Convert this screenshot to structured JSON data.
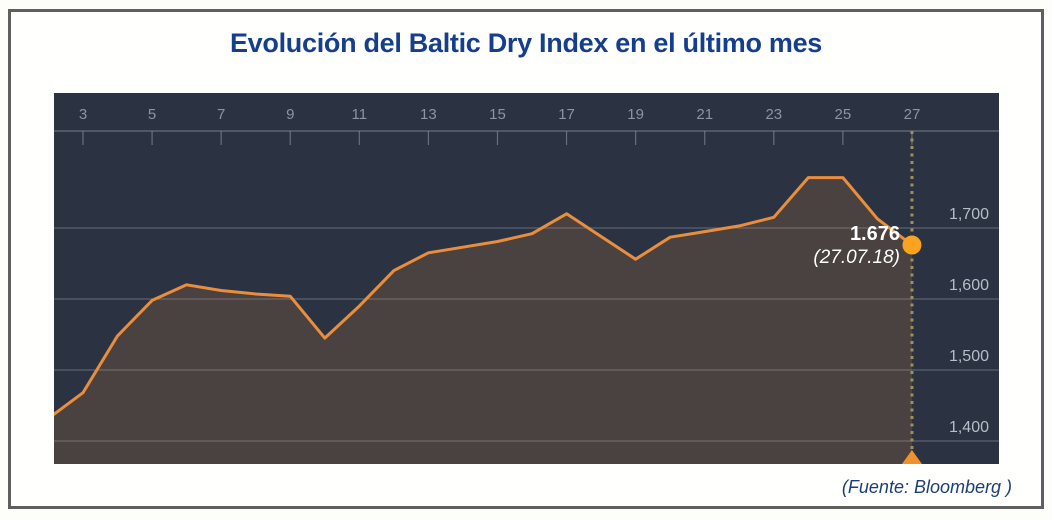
{
  "page": {
    "title": "Evolución del Baltic Dry Index en el último mes",
    "source_note": "(Fuente: Bloomberg )"
  },
  "colors": {
    "plot_background": "#2b3342",
    "line": "#e98e3c",
    "area_fill": "#ef9040",
    "area_fill_opacity": 0.16,
    "marker": "#f9a31f",
    "end_triangle": "#f0922b",
    "dotted_line": "#a38c5e",
    "gridline": "#c3cddc",
    "gridline_opacity": 0.3,
    "axis_line": "#9aa1ab",
    "x_tick_label": "#8d949e",
    "y_tick_label": "#b6bdc7",
    "title": "#153f8c",
    "source_note": "#1d3e78",
    "annotation_text": "#ffffff",
    "frame_border": "#5f5f5f"
  },
  "chart_data": {
    "type": "area",
    "title": "Evolución del Baltic Dry Index en el último mes",
    "x_axis": {
      "position": "top",
      "unit": "day of month (July 2018)",
      "tick_days": [
        3,
        5,
        7,
        9,
        11,
        13,
        15,
        17,
        19,
        21,
        23,
        25,
        27
      ],
      "tick_labels": [
        "3",
        "5",
        "7",
        "9",
        "11",
        "13",
        "15",
        "17",
        "19",
        "21",
        "23",
        "25",
        "27"
      ],
      "range": [
        2.2,
        29.5
      ]
    },
    "y_axis": {
      "position": "right",
      "tick_values": [
        1700,
        1600,
        1500,
        1400
      ],
      "tick_labels": [
        "1,700",
        "1,600",
        "1,500",
        "1,400"
      ],
      "range": [
        1379,
        1792
      ]
    },
    "grid": "horizontal",
    "legend": "none",
    "series": [
      {
        "name": "Baltic Dry Index",
        "x": [
          2,
          3,
          4,
          5,
          6,
          7,
          8,
          9,
          10,
          11,
          12,
          13,
          14,
          15,
          16,
          17,
          18,
          19,
          20,
          21,
          22,
          23,
          24,
          25,
          26,
          27
        ],
        "values": [
          1432,
          1468,
          1548,
          1598,
          1620,
          1612,
          1607,
          1604,
          1545,
          1590,
          1640,
          1665,
          1673,
          1681,
          1692,
          1720,
          1688,
          1656,
          1687,
          1695,
          1703,
          1715,
          1771,
          1771,
          1713,
          1676
        ]
      }
    ],
    "annotation": {
      "value_label": "1.676",
      "date_label": "(27.07.18)",
      "day": 27,
      "value": 1676
    }
  }
}
